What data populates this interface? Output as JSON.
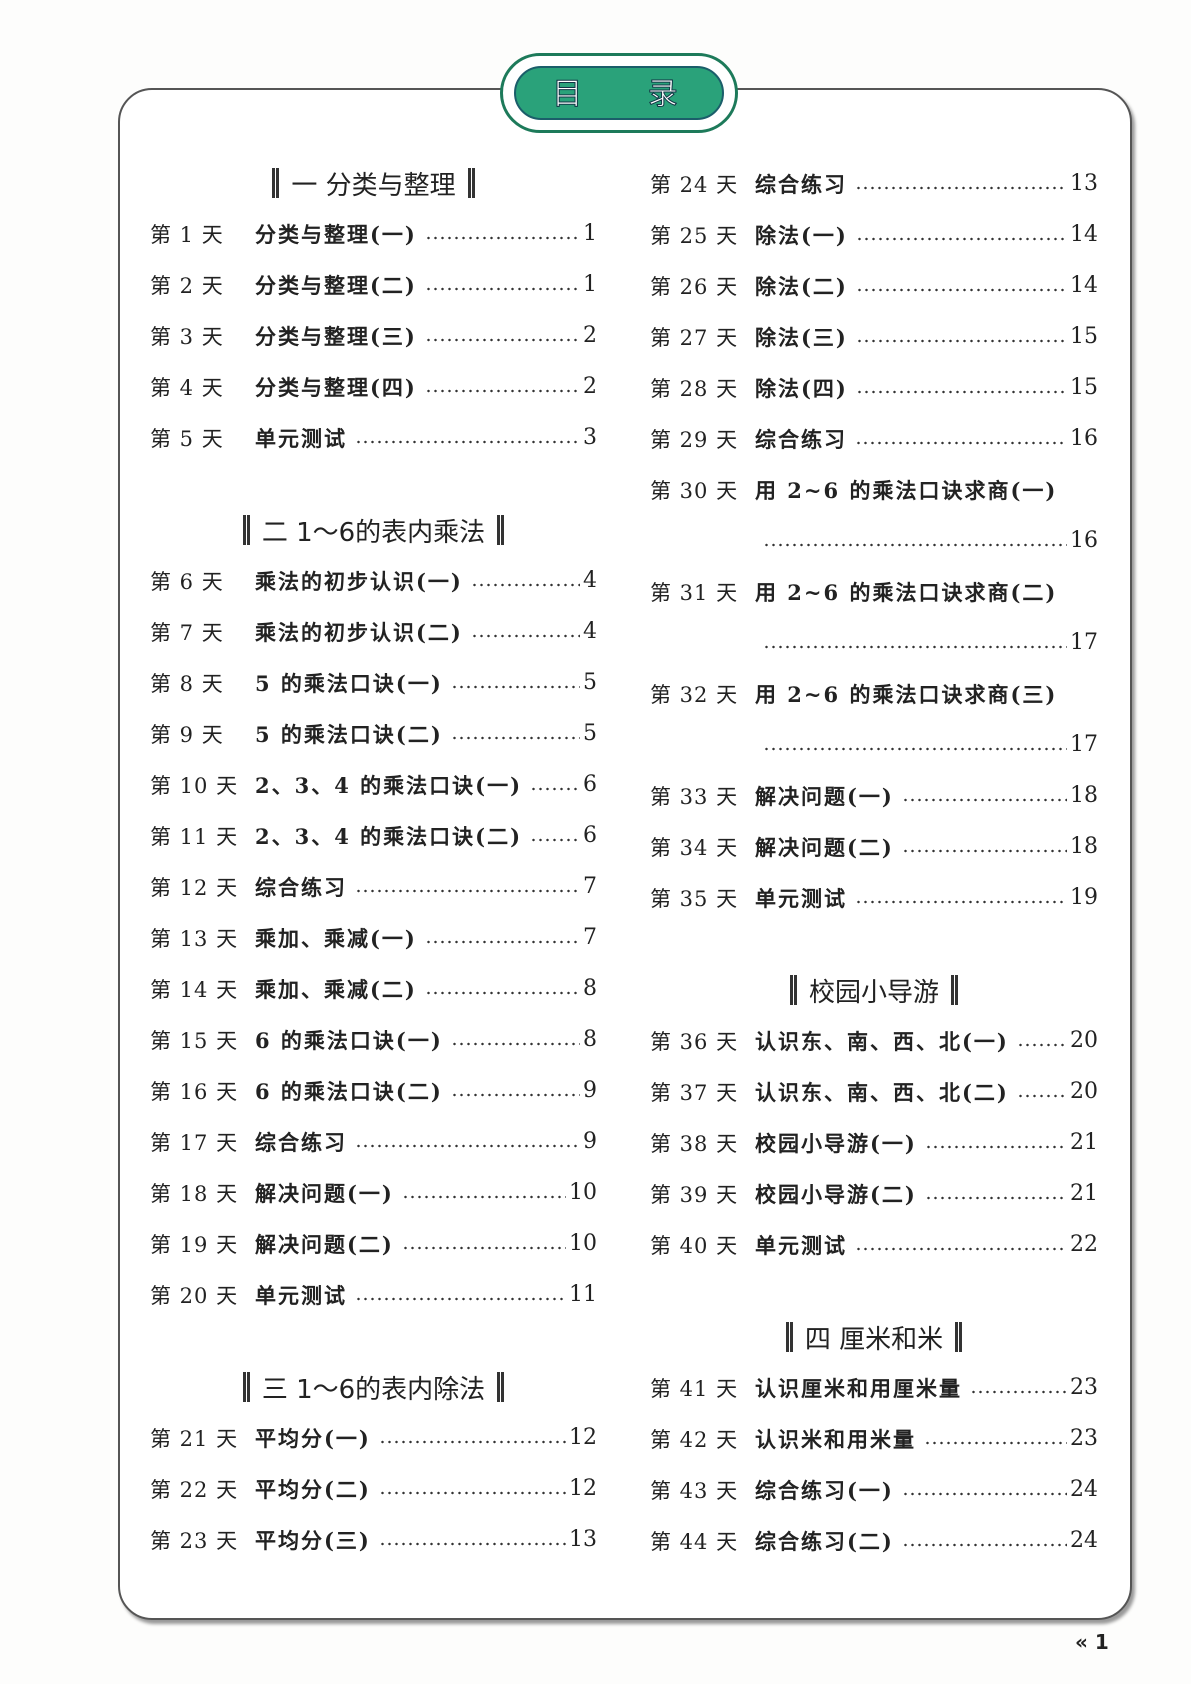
{
  "title": "目 录",
  "page_number": "« 1",
  "left": [
    {
      "type": "header",
      "text": "一  分类与整理"
    },
    {
      "type": "entry",
      "day": "第 1 天",
      "title": "分类与整理(一)",
      "page": "1"
    },
    {
      "type": "entry",
      "day": "第 2 天",
      "title": "分类与整理(二)",
      "page": "1"
    },
    {
      "type": "entry",
      "day": "第 3 天",
      "title": "分类与整理(三)",
      "page": "2"
    },
    {
      "type": "entry",
      "day": "第 4 天",
      "title": "分类与整理(四)",
      "page": "2"
    },
    {
      "type": "entry",
      "day": "第 5 天",
      "title": "单元测试",
      "page": "3"
    },
    {
      "type": "header",
      "text": "二  1～6的表内乘法"
    },
    {
      "type": "entry",
      "day": "第 6 天",
      "title": "乘法的初步认识(一)",
      "page": "4"
    },
    {
      "type": "entry",
      "day": "第 7 天",
      "title": "乘法的初步认识(二)",
      "page": "4"
    },
    {
      "type": "entry",
      "day": "第 8 天",
      "title": "5 的乘法口诀(一)",
      "page": "5"
    },
    {
      "type": "entry",
      "day": "第 9 天",
      "title": "5 的乘法口诀(二)",
      "page": "5"
    },
    {
      "type": "entry",
      "day": "第 10 天",
      "title": "2、3、4 的乘法口诀(一)",
      "page": "6"
    },
    {
      "type": "entry",
      "day": "第 11 天",
      "title": "2、3、4 的乘法口诀(二)",
      "page": "6"
    },
    {
      "type": "entry",
      "day": "第 12 天",
      "title": "综合练习",
      "page": "7"
    },
    {
      "type": "entry",
      "day": "第 13 天",
      "title": "乘加、乘减(一)",
      "page": "7"
    },
    {
      "type": "entry",
      "day": "第 14 天",
      "title": "乘加、乘减(二)",
      "page": "8"
    },
    {
      "type": "entry",
      "day": "第 15 天",
      "title": "6 的乘法口诀(一)",
      "page": "8"
    },
    {
      "type": "entry",
      "day": "第 16 天",
      "title": "6 的乘法口诀(二)",
      "page": "9"
    },
    {
      "type": "entry",
      "day": "第 17 天",
      "title": "综合练习",
      "page": "9"
    },
    {
      "type": "entry",
      "day": "第 18 天",
      "title": "解决问题(一)",
      "page": "10"
    },
    {
      "type": "entry",
      "day": "第 19 天",
      "title": "解决问题(二)",
      "page": "10"
    },
    {
      "type": "entry",
      "day": "第 20 天",
      "title": "单元测试",
      "page": "11"
    },
    {
      "type": "header",
      "text": "三  1～6的表内除法"
    },
    {
      "type": "entry",
      "day": "第 21 天",
      "title": "平均分(一)",
      "page": "12"
    },
    {
      "type": "entry",
      "day": "第 22 天",
      "title": "平均分(二)",
      "page": "12"
    },
    {
      "type": "entry",
      "day": "第 23 天",
      "title": "平均分(三)",
      "page": "13"
    }
  ],
  "right": [
    {
      "type": "entry",
      "day": "第 24 天",
      "title": "综合练习",
      "page": "13"
    },
    {
      "type": "entry",
      "day": "第 25 天",
      "title": "除法(一)",
      "page": "14"
    },
    {
      "type": "entry",
      "day": "第 26 天",
      "title": "除法(二)",
      "page": "14"
    },
    {
      "type": "entry",
      "day": "第 27 天",
      "title": "除法(三)",
      "page": "15"
    },
    {
      "type": "entry",
      "day": "第 28 天",
      "title": "除法(四)",
      "page": "15"
    },
    {
      "type": "entry",
      "day": "第 29 天",
      "title": "综合练习",
      "page": "16"
    },
    {
      "type": "wrap",
      "day": "第 30 天",
      "title": "用 2~6 的乘法口诀求商(一)",
      "page": "16"
    },
    {
      "type": "wrap",
      "day": "第 31 天",
      "title": "用 2~6 的乘法口诀求商(二)",
      "page": "17"
    },
    {
      "type": "wrap",
      "day": "第 32 天",
      "title": "用 2~6 的乘法口诀求商(三)",
      "page": "17"
    },
    {
      "type": "entry",
      "day": "第 33 天",
      "title": "解决问题(一)",
      "page": "18"
    },
    {
      "type": "entry",
      "day": "第 34 天",
      "title": "解决问题(二)",
      "page": "18"
    },
    {
      "type": "entry",
      "day": "第 35 天",
      "title": "单元测试",
      "page": "19"
    },
    {
      "type": "header",
      "text": "校园小导游"
    },
    {
      "type": "entry",
      "day": "第 36 天",
      "title": "认识东、南、西、北(一)",
      "page": "20"
    },
    {
      "type": "entry",
      "day": "第 37 天",
      "title": "认识东、南、西、北(二)",
      "page": "20"
    },
    {
      "type": "entry",
      "day": "第 38 天",
      "title": "校园小导游(一)",
      "page": "21"
    },
    {
      "type": "entry",
      "day": "第 39 天",
      "title": "校园小导游(二)",
      "page": "21"
    },
    {
      "type": "entry",
      "day": "第 40 天",
      "title": "单元测试",
      "page": "22"
    },
    {
      "type": "header",
      "text": "四  厘米和米"
    },
    {
      "type": "entry",
      "day": "第 41 天",
      "title": "认识厘米和用厘米量",
      "page": "23"
    },
    {
      "type": "entry",
      "day": "第 42 天",
      "title": "认识米和用米量",
      "page": "23"
    },
    {
      "type": "entry",
      "day": "第 43 天",
      "title": "综合练习(一)",
      "page": "24"
    },
    {
      "type": "entry",
      "day": "第 44 天",
      "title": "综合练习(二)",
      "page": "24"
    }
  ],
  "colors": {
    "accent": "#2aa27a",
    "accent_dark": "#1d7a5a"
  }
}
